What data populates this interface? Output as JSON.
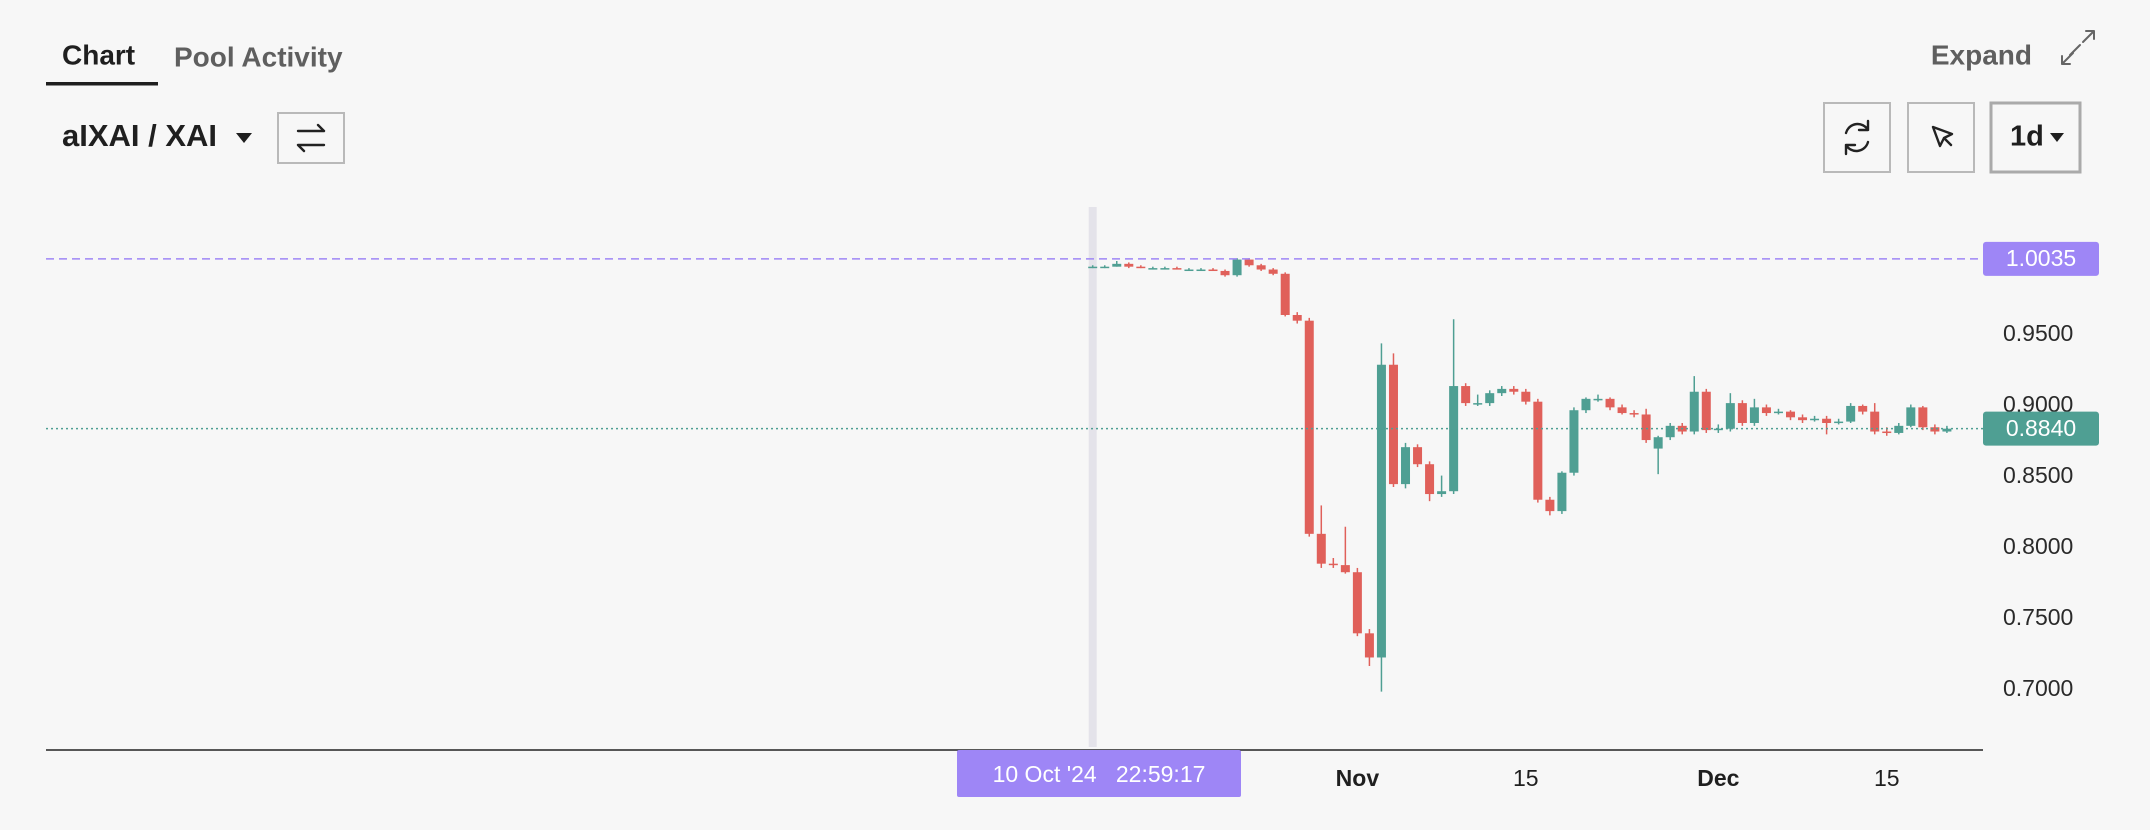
{
  "tabs": [
    "Chart",
    "Pool Activity"
  ],
  "expand": "Expand",
  "pair": "aIXAI / XAI",
  "interval": "1d",
  "chart_data": {
    "type": "candlestick",
    "up_color": "#4f9f93",
    "down_color": "#e0605a",
    "x": [
      "2024-10-10",
      "2024-10-11",
      "2024-10-12",
      "2024-10-13",
      "2024-10-14",
      "2024-10-15",
      "2024-10-16",
      "2024-10-17",
      "2024-10-18",
      "2024-10-19",
      "2024-10-20",
      "2024-10-21",
      "2024-10-22",
      "2024-10-23",
      "2024-10-24",
      "2024-10-25",
      "2024-10-26",
      "2024-10-27",
      "2024-10-28",
      "2024-10-29",
      "2024-10-30",
      "2024-10-31",
      "2024-11-01",
      "2024-11-02",
      "2024-11-03",
      "2024-11-04",
      "2024-11-05",
      "2024-11-06",
      "2024-11-07",
      "2024-11-08",
      "2024-11-09",
      "2024-11-10",
      "2024-11-11",
      "2024-11-12",
      "2024-11-13",
      "2024-11-14",
      "2024-11-15",
      "2024-11-16",
      "2024-11-17",
      "2024-11-18",
      "2024-11-19",
      "2024-11-20",
      "2024-11-21",
      "2024-11-22",
      "2024-11-23",
      "2024-11-24",
      "2024-11-25",
      "2024-11-26",
      "2024-11-27",
      "2024-11-28",
      "2024-11-29",
      "2024-11-30",
      "2024-12-01",
      "2024-12-02",
      "2024-12-03",
      "2024-12-04",
      "2024-12-05",
      "2024-12-06",
      "2024-12-07",
      "2024-12-08",
      "2024-12-09",
      "2024-12-10",
      "2024-12-11",
      "2024-12-12",
      "2024-12-13",
      "2024-12-14",
      "2024-12-15",
      "2024-12-16",
      "2024-12-17",
      "2024-12-18",
      "2024-12-19",
      "2024-12-20"
    ],
    "open": [
      0.998,
      0.998,
      0.998,
      1.0,
      0.998,
      0.997,
      0.997,
      0.997,
      0.996,
      0.996,
      0.996,
      0.995,
      0.992,
      1.003,
      0.999,
      0.996,
      0.993,
      0.964,
      0.96,
      0.81,
      0.789,
      0.788,
      0.783,
      0.74,
      0.723,
      0.929,
      0.845,
      0.871,
      0.859,
      0.838,
      0.84,
      0.914,
      0.902,
      0.902,
      0.909,
      0.912,
      0.91,
      0.903,
      0.834,
      0.826,
      0.853,
      0.897,
      0.905,
      0.905,
      0.899,
      0.895,
      0.894,
      0.87,
      0.878,
      0.886,
      0.882,
      0.91,
      0.883,
      0.884,
      0.902,
      0.888,
      0.899,
      0.895,
      0.896,
      0.892,
      0.89,
      0.891,
      0.888,
      0.889,
      0.9,
      0.896,
      0.882,
      0.881,
      0.886,
      0.899,
      0.885,
      0.882
    ],
    "high": [
      0.999,
      0.999,
      1.002,
      1.001,
      0.999,
      0.998,
      0.998,
      0.998,
      0.997,
      0.997,
      0.997,
      0.996,
      1.004,
      1.004,
      1.0,
      0.997,
      0.994,
      0.966,
      0.962,
      0.83,
      0.793,
      0.815,
      0.786,
      0.743,
      0.944,
      0.937,
      0.874,
      0.873,
      0.861,
      0.851,
      0.961,
      0.916,
      0.908,
      0.911,
      0.914,
      0.914,
      0.912,
      0.905,
      0.836,
      0.854,
      0.899,
      0.906,
      0.908,
      0.906,
      0.901,
      0.897,
      0.898,
      0.879,
      0.888,
      0.888,
      0.921,
      0.912,
      0.887,
      0.909,
      0.904,
      0.905,
      0.901,
      0.898,
      0.897,
      0.894,
      0.893,
      0.893,
      0.891,
      0.902,
      0.901,
      0.902,
      0.885,
      0.888,
      0.901,
      0.9,
      0.887,
      0.886
    ],
    "low": [
      0.997,
      0.997,
      0.998,
      0.997,
      0.997,
      0.996,
      0.996,
      0.996,
      0.995,
      0.995,
      0.995,
      0.991,
      0.991,
      0.998,
      0.995,
      0.992,
      0.963,
      0.958,
      0.808,
      0.786,
      0.786,
      0.782,
      0.738,
      0.717,
      0.699,
      0.843,
      0.842,
      0.857,
      0.833,
      0.836,
      0.838,
      0.9,
      0.9,
      0.9,
      0.907,
      0.908,
      0.901,
      0.832,
      0.823,
      0.824,
      0.851,
      0.895,
      0.903,
      0.897,
      0.894,
      0.892,
      0.874,
      0.852,
      0.876,
      0.88,
      0.88,
      0.881,
      0.881,
      0.882,
      0.886,
      0.886,
      0.893,
      0.894,
      0.89,
      0.888,
      0.889,
      0.88,
      0.887,
      0.888,
      0.894,
      0.88,
      0.879,
      0.88,
      0.885,
      0.883,
      0.88,
      0.881
    ],
    "close": [
      0.998,
      0.998,
      1.0,
      0.998,
      0.997,
      0.997,
      0.997,
      0.996,
      0.996,
      0.996,
      0.995,
      0.992,
      1.003,
      0.999,
      0.996,
      0.993,
      0.964,
      0.96,
      0.81,
      0.789,
      0.788,
      0.783,
      0.74,
      0.723,
      0.929,
      0.845,
      0.871,
      0.859,
      0.838,
      0.84,
      0.914,
      0.902,
      0.902,
      0.909,
      0.912,
      0.91,
      0.903,
      0.834,
      0.826,
      0.853,
      0.897,
      0.905,
      0.905,
      0.899,
      0.895,
      0.894,
      0.876,
      0.878,
      0.886,
      0.882,
      0.91,
      0.883,
      0.884,
      0.902,
      0.888,
      0.899,
      0.895,
      0.896,
      0.892,
      0.89,
      0.891,
      0.888,
      0.889,
      0.9,
      0.896,
      0.882,
      0.881,
      0.886,
      0.899,
      0.885,
      0.882,
      0.884
    ],
    "xlim": [
      "2024-07-15",
      "2024-12-23"
    ],
    "xticks": [
      {
        "value": "2024-11-01",
        "label": "Nov"
      },
      {
        "value": "2024-11-15",
        "label": "15"
      },
      {
        "value": "2024-12-01",
        "label": "Dec"
      },
      {
        "value": "2024-12-15",
        "label": "15"
      }
    ],
    "ylim": [
      0.66,
      1.04
    ],
    "yticks": [
      {
        "value": 0.7,
        "label": "0.7000"
      },
      {
        "value": 0.75,
        "label": "0.7500"
      },
      {
        "value": 0.8,
        "label": "0.8000"
      },
      {
        "value": 0.85,
        "label": "0.8500"
      },
      {
        "value": 0.9,
        "label": "0.9000"
      },
      {
        "value": 0.95,
        "label": "0.9500"
      }
    ],
    "price_lines": [
      {
        "value": 1.0035,
        "color": "#9e86f6",
        "style": "dashed"
      },
      {
        "value": 0.884,
        "label": "0.8840",
        "color": "#4f9f93",
        "style": "dotted"
      }
    ],
    "crosshair": {
      "x": "2024-10-10",
      "label": "10 Oct '24   22:59:17",
      "color": "#9e86f6"
    }
  }
}
